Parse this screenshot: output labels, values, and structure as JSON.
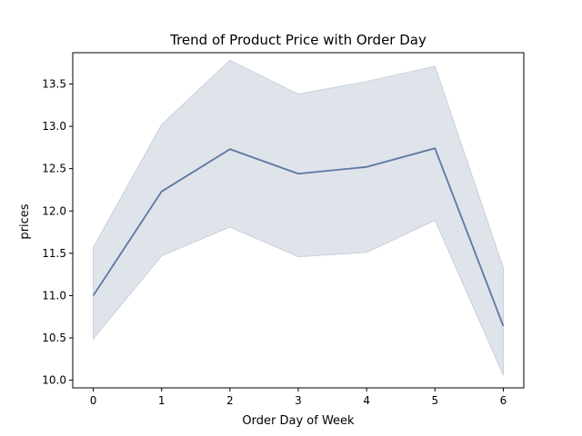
{
  "chart_data": {
    "type": "line",
    "title": "Trend of Product Price with Order Day",
    "xlabel": "Order Day of Week",
    "ylabel": "prices",
    "x": [
      0,
      1,
      2,
      3,
      4,
      5,
      6
    ],
    "series": [
      {
        "values": [
          11.0,
          12.23,
          12.73,
          12.44,
          12.52,
          12.74,
          10.64
        ],
        "ci_lower": [
          10.49,
          11.47,
          11.81,
          11.46,
          11.51,
          11.89,
          10.06
        ],
        "ci_upper": [
          11.57,
          13.02,
          13.78,
          13.38,
          13.53,
          13.71,
          11.33
        ]
      }
    ],
    "xlim": [
      -0.3,
      6.3
    ],
    "ylim": [
      9.91,
      13.87
    ],
    "xticks": [
      "0",
      "1",
      "2",
      "3",
      "4",
      "5",
      "6"
    ],
    "yticks": [
      "10.0",
      "10.5",
      "11.0",
      "11.5",
      "12.0",
      "12.5",
      "13.0",
      "13.5"
    ],
    "grid": false,
    "legend": "none",
    "colors": {
      "line": "#5b77a1",
      "band": "#dfe3ea",
      "band_edge": "#c9d1dd"
    }
  }
}
